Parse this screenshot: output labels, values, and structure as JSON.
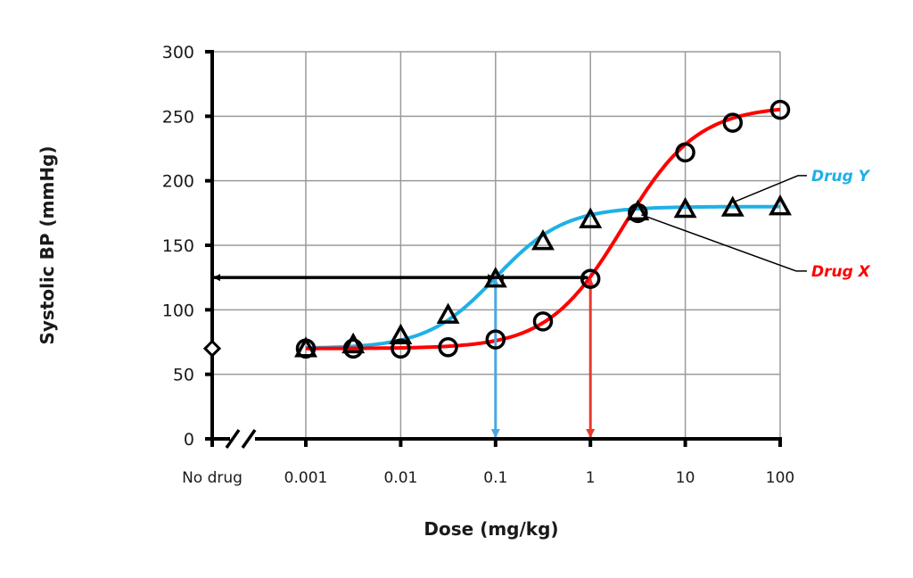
{
  "chart_data": {
    "type": "line",
    "title": "",
    "xlabel": "Dose (mg/kg)",
    "ylabel": "Systolic BP (mmHg)",
    "xscale": "log",
    "ylim": [
      0,
      300
    ],
    "y_ticks": [
      "0",
      "50",
      "100",
      "150",
      "200",
      "250",
      "300"
    ],
    "y_tick_values": [
      0,
      50,
      100,
      150,
      200,
      250,
      300
    ],
    "x_ticks": [
      "No drug",
      "0.001",
      "0.01",
      "0.1",
      "1",
      "10",
      "100"
    ],
    "x_tick_values": [
      null,
      0.001,
      0.01,
      0.1,
      1,
      10,
      100
    ],
    "grid": true,
    "axis_break": "between No drug and 0.001",
    "baseline": {
      "label": "No drug",
      "value": 70,
      "marker": "diamond"
    },
    "series": [
      {
        "name": "Drug Y",
        "color": "#1fb0e6",
        "marker": "triangle",
        "x": [
          0.001,
          0.00316,
          0.01,
          0.0316,
          0.1,
          0.316,
          1,
          3.16,
          10,
          31.6,
          100
        ],
        "values": [
          70,
          73,
          80,
          96,
          124,
          153,
          170,
          176,
          178,
          179,
          180
        ],
        "fit": {
          "bottom": 70,
          "top": 180,
          "ed50": 0.1,
          "hill": 1.2
        }
      },
      {
        "name": "Drug X",
        "color": "#ff0000",
        "marker": "circle",
        "x": [
          0.001,
          0.00316,
          0.01,
          0.0316,
          0.1,
          0.316,
          1,
          3.16,
          10,
          31.6,
          100
        ],
        "values": [
          70,
          70,
          70,
          71,
          77,
          91,
          124,
          175,
          222,
          245,
          255
        ],
        "fit": {
          "bottom": 70,
          "top": 258,
          "ed50": 2.2,
          "hill": 1.1
        }
      }
    ],
    "annotations": [
      {
        "type": "double-arrow-horizontal",
        "y": 125,
        "from": "No drug",
        "to": 1,
        "color": "#000000"
      },
      {
        "type": "double-arrow-vertical",
        "x": 0.1,
        "from": 0,
        "to": 125,
        "color": "#4aa8e0"
      },
      {
        "type": "double-arrow-vertical",
        "x": 1,
        "from": 0,
        "to": 125,
        "color": "#e8392e"
      }
    ],
    "legend": [
      {
        "label": "Drug Y",
        "color": "#1fb0e6",
        "placement": "right"
      },
      {
        "label": "Drug X",
        "color": "#ff0000",
        "placement": "right"
      }
    ]
  }
}
